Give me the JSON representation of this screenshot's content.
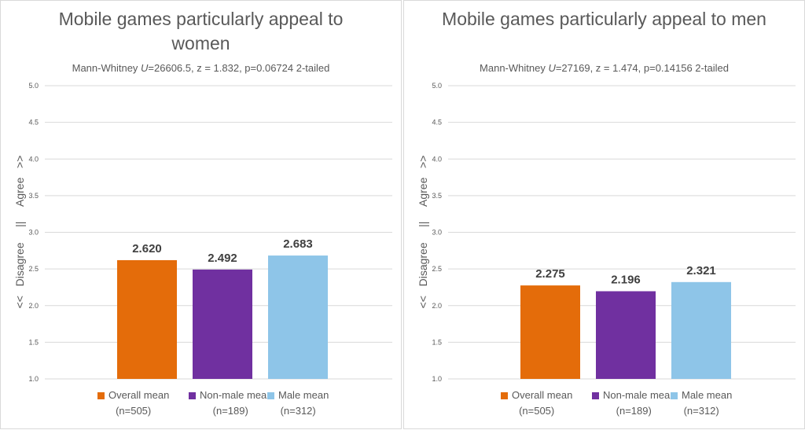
{
  "chart_data": [
    {
      "type": "bar",
      "title": "Mobile games particularly appeal to women",
      "subtitle_pre": "Mann-Whitney ",
      "subtitle_u": "U",
      "subtitle_post": "=26606.5, z = 1.832, p=0.06724 2-tailed",
      "ylabel": "<<   Disagree     ||     Agree   >>",
      "ylim": [
        1.0,
        5.0
      ],
      "yticks": [
        "1.0",
        "1.5",
        "2.0",
        "2.5",
        "3.0",
        "3.5",
        "4.0",
        "4.5",
        "5.0"
      ],
      "grid": true,
      "categories": [
        "Overall mean",
        "Non-male mean",
        "Male mean"
      ],
      "category_n": [
        "(n=505)",
        "(n=189)",
        "(n=312)"
      ],
      "values": [
        2.62,
        2.492,
        2.683
      ],
      "value_labels": [
        "2.620",
        "2.492",
        "2.683"
      ],
      "colors": [
        "#e46c0a",
        "#7030a0",
        "#8ec5e8"
      ],
      "legend_position": "bottom"
    },
    {
      "type": "bar",
      "title": "Mobile games particularly appeal to men",
      "subtitle_pre": "Mann-Whitney ",
      "subtitle_u": "U",
      "subtitle_post": "=27169, z = 1.474, p=0.14156 2-tailed",
      "ylabel": "<<   Disagree     ||     Agree   >>",
      "ylim": [
        1.0,
        5.0
      ],
      "yticks": [
        "1.0",
        "1.5",
        "2.0",
        "2.5",
        "3.0",
        "3.5",
        "4.0",
        "4.5",
        "5.0"
      ],
      "grid": true,
      "categories": [
        "Overall mean",
        "Non-male mean",
        "Male mean"
      ],
      "category_n": [
        "(n=505)",
        "(n=189)",
        "(n=312)"
      ],
      "values": [
        2.275,
        2.196,
        2.321
      ],
      "value_labels": [
        "2.275",
        "2.196",
        "2.321"
      ],
      "colors": [
        "#e46c0a",
        "#7030a0",
        "#8ec5e8"
      ],
      "legend_position": "bottom"
    }
  ]
}
